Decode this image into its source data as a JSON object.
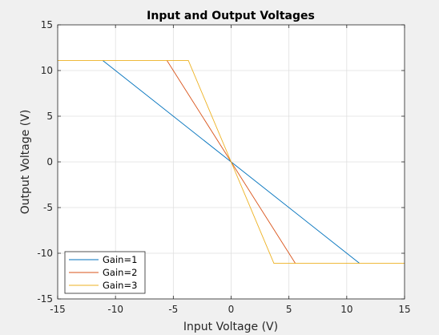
{
  "chart_data": {
    "type": "line",
    "title": "Input and Output Voltages",
    "xlabel": "Input Voltage (V)",
    "ylabel": "Output Voltage (V)",
    "xlim": [
      -15,
      15
    ],
    "ylim": [
      -15,
      15
    ],
    "xticks": [
      -15,
      -10,
      -5,
      0,
      5,
      10,
      15
    ],
    "yticks": [
      -15,
      -10,
      -5,
      0,
      5,
      10,
      15
    ],
    "grid": true,
    "legend_position": "bottom-left",
    "series": [
      {
        "name": "Gain=1",
        "color": "#0072bd",
        "x": [
          -11.1,
          0,
          11.1
        ],
        "y": [
          11.1,
          0,
          -11.1
        ]
      },
      {
        "name": "Gain=2",
        "color": "#d95319",
        "x": [
          -5.55,
          0,
          5.55
        ],
        "y": [
          11.1,
          0,
          -11.1
        ]
      },
      {
        "name": "Gain=3",
        "color": "#edb120",
        "x": [
          -15,
          -3.7,
          0,
          3.7,
          15
        ],
        "y": [
          11.1,
          11.1,
          0,
          -11.1,
          -11.1
        ]
      }
    ]
  }
}
